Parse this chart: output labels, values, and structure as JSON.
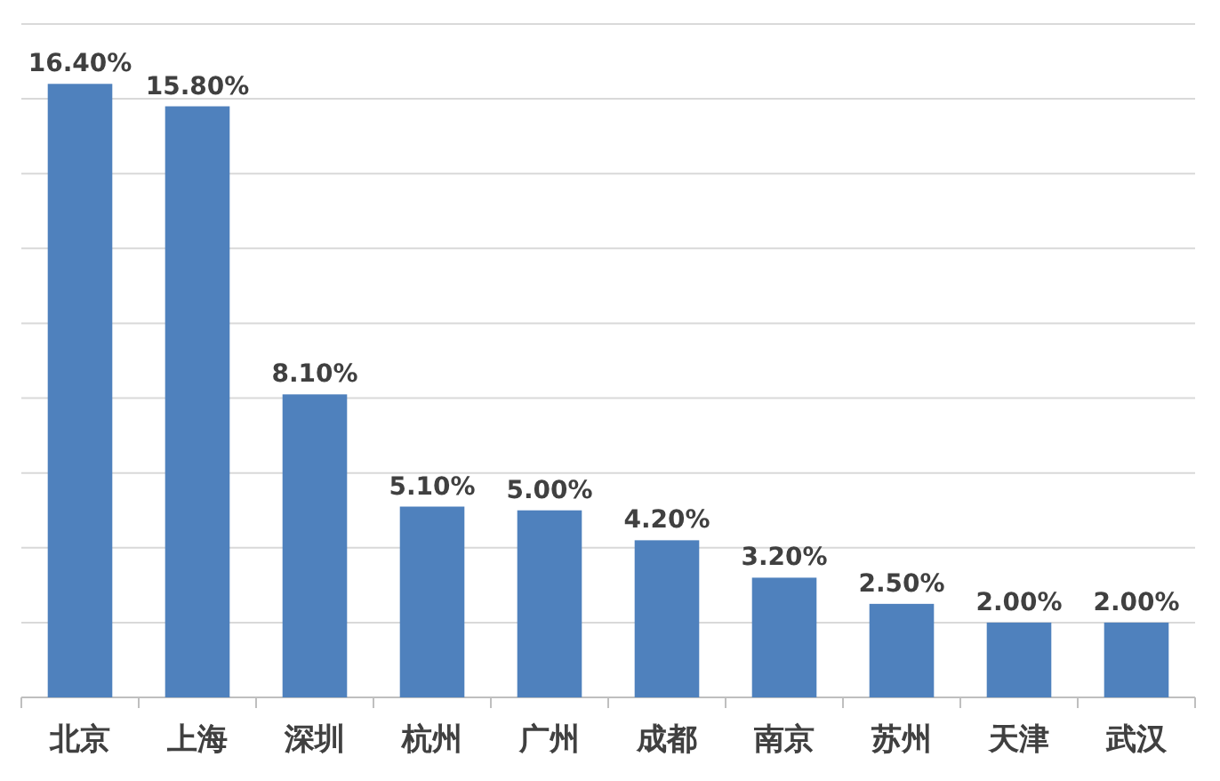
{
  "chart_data": {
    "type": "bar",
    "categories": [
      "北京",
      "上海",
      "深圳",
      "杭州",
      "广州",
      "成都",
      "南京",
      "苏州",
      "天津",
      "武汉"
    ],
    "values": [
      16.4,
      15.8,
      8.1,
      5.1,
      5.0,
      4.2,
      3.2,
      2.5,
      2.0,
      2.0
    ],
    "value_labels": [
      "16.40%",
      "15.80%",
      "8.10%",
      "5.10%",
      "5.00%",
      "4.20%",
      "3.20%",
      "2.50%",
      "2.00%",
      "2.00%"
    ],
    "color": "#4f81bd",
    "ylim": [
      0,
      18
    ],
    "yticks": [
      {
        "value": 0,
        "label": null
      },
      {
        "value": 2,
        "label": null
      },
      {
        "value": 4,
        "label": null
      },
      {
        "value": 6,
        "label": null
      },
      {
        "value": 8,
        "label": null
      },
      {
        "value": 10,
        "label": null
      },
      {
        "value": 12,
        "label": null
      },
      {
        "value": 14,
        "label": null
      },
      {
        "value": 16,
        "label": null
      },
      {
        "value": 18,
        "label": null
      }
    ],
    "grid": "y",
    "tick_labels": "x"
  }
}
